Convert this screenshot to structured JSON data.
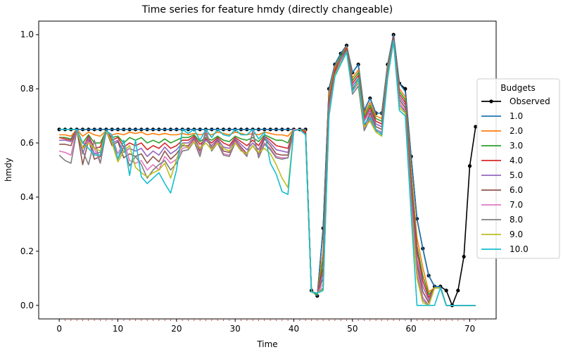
{
  "chart_data": {
    "type": "line",
    "title": "Time series for feature hmdy (directly changeable)",
    "xlabel": "Time",
    "ylabel": "hmdy",
    "xlim": [
      -3.5,
      74.5
    ],
    "ylim": [
      -0.05,
      1.05
    ],
    "xticks": [
      0,
      10,
      20,
      30,
      40,
      50,
      60,
      70
    ],
    "yticks": [
      0.0,
      0.2,
      0.4,
      0.6,
      0.8,
      1.0
    ],
    "grid": false,
    "legend": {
      "title": "Budgets",
      "placement": "right"
    },
    "colors": {
      "Observed": "#000000",
      "1.0": "#1f77b4",
      "2.0": "#ff7f0e",
      "3.0": "#2ca02c",
      "4.0": "#d62728",
      "5.0": "#9467bd",
      "6.0": "#8c564b",
      "7.0": "#e377c2",
      "8.0": "#7f7f7f",
      "9.0": "#bcbd22",
      "10.0": "#17becf"
    },
    "series": [
      {
        "name": "Observed",
        "values": [
          0.65,
          0.65,
          0.65,
          0.65,
          0.65,
          0.65,
          0.65,
          0.65,
          0.65,
          0.65,
          0.65,
          0.65,
          0.65,
          0.65,
          0.65,
          0.65,
          0.65,
          0.65,
          0.65,
          0.65,
          0.65,
          0.65,
          0.65,
          0.65,
          0.65,
          0.65,
          0.65,
          0.65,
          0.65,
          0.65,
          0.65,
          0.65,
          0.65,
          0.65,
          0.65,
          0.65,
          0.65,
          0.65,
          0.65,
          0.65,
          0.65,
          0.65,
          0.65,
          0.055,
          0.035,
          0.285,
          0.8,
          0.89,
          0.93,
          0.96,
          0.86,
          0.89,
          0.72,
          0.765,
          0.71,
          0.71,
          0.89,
          1.0,
          0.82,
          0.8,
          0.55,
          0.32,
          0.21,
          0.11,
          0.07,
          0.07,
          0.055,
          0.0,
          0.055,
          0.18,
          0.515,
          0.66
        ]
      },
      {
        "name": "1.0",
        "values": [
          0.65,
          0.65,
          0.65,
          0.65,
          0.65,
          0.65,
          0.65,
          0.65,
          0.65,
          0.65,
          0.65,
          0.65,
          0.65,
          0.65,
          0.65,
          0.65,
          0.65,
          0.65,
          0.65,
          0.65,
          0.65,
          0.65,
          0.65,
          0.65,
          0.65,
          0.65,
          0.65,
          0.65,
          0.65,
          0.65,
          0.65,
          0.65,
          0.65,
          0.65,
          0.65,
          0.65,
          0.65,
          0.65,
          0.65,
          0.65,
          0.65,
          0.65,
          0.65,
          0.055,
          0.035,
          0.28,
          0.8,
          0.89,
          0.93,
          0.96,
          0.86,
          0.89,
          0.72,
          0.765,
          0.71,
          0.71,
          0.89,
          1.0,
          0.82,
          0.79,
          0.55,
          0.32,
          0.21,
          0.11,
          0.07,
          0.07,
          0.0,
          0.0,
          0.0,
          0.0,
          0.0,
          0.0
        ]
      },
      {
        "name": "2.0",
        "values": [
          0.63,
          0.63,
          0.625,
          0.65,
          0.625,
          0.64,
          0.63,
          0.625,
          0.645,
          0.63,
          0.635,
          0.63,
          0.64,
          0.635,
          0.64,
          0.63,
          0.635,
          0.63,
          0.635,
          0.63,
          0.63,
          0.635,
          0.63,
          0.635,
          0.63,
          0.635,
          0.63,
          0.64,
          0.635,
          0.63,
          0.64,
          0.635,
          0.63,
          0.635,
          0.63,
          0.64,
          0.635,
          0.63,
          0.63,
          0.625,
          0.65,
          0.65,
          0.645,
          0.05,
          0.04,
          0.2,
          0.78,
          0.88,
          0.92,
          0.955,
          0.84,
          0.87,
          0.71,
          0.75,
          0.7,
          0.69,
          0.88,
          0.99,
          0.8,
          0.77,
          0.5,
          0.25,
          0.14,
          0.05,
          0.065,
          0.065,
          0.0,
          0.0,
          0.0,
          0.0,
          0.0,
          0.0
        ]
      },
      {
        "name": "3.0",
        "values": [
          0.62,
          0.62,
          0.615,
          0.65,
          0.6,
          0.63,
          0.6,
          0.6,
          0.645,
          0.62,
          0.625,
          0.6,
          0.62,
          0.61,
          0.62,
          0.6,
          0.61,
          0.6,
          0.615,
          0.6,
          0.61,
          0.62,
          0.62,
          0.63,
          0.605,
          0.62,
          0.61,
          0.625,
          0.61,
          0.605,
          0.625,
          0.615,
          0.61,
          0.62,
          0.605,
          0.63,
          0.62,
          0.61,
          0.61,
          0.6,
          0.65,
          0.65,
          0.64,
          0.05,
          0.04,
          0.17,
          0.76,
          0.87,
          0.92,
          0.95,
          0.83,
          0.86,
          0.7,
          0.74,
          0.69,
          0.68,
          0.87,
          0.99,
          0.79,
          0.76,
          0.47,
          0.22,
          0.11,
          0.04,
          0.065,
          0.065,
          0.0,
          0.0,
          0.0,
          0.0,
          0.0,
          0.0
        ]
      },
      {
        "name": "4.0",
        "values": [
          0.62,
          0.615,
          0.61,
          0.65,
          0.58,
          0.625,
          0.58,
          0.585,
          0.645,
          0.61,
          0.62,
          0.585,
          0.6,
          0.59,
          0.6,
          0.575,
          0.59,
          0.58,
          0.6,
          0.58,
          0.59,
          0.61,
          0.61,
          0.625,
          0.595,
          0.615,
          0.6,
          0.62,
          0.6,
          0.59,
          0.62,
          0.605,
          0.59,
          0.61,
          0.59,
          0.625,
          0.61,
          0.59,
          0.585,
          0.58,
          0.65,
          0.65,
          0.64,
          0.05,
          0.045,
          0.14,
          0.75,
          0.87,
          0.91,
          0.95,
          0.82,
          0.85,
          0.69,
          0.73,
          0.68,
          0.67,
          0.86,
          0.99,
          0.78,
          0.75,
          0.45,
          0.2,
          0.09,
          0.03,
          0.065,
          0.065,
          0.0,
          0.0,
          0.0,
          0.0,
          0.0,
          0.0
        ]
      },
      {
        "name": "5.0",
        "values": [
          0.61,
          0.61,
          0.605,
          0.65,
          0.56,
          0.62,
          0.56,
          0.565,
          0.645,
          0.6,
          0.61,
          0.565,
          0.58,
          0.57,
          0.58,
          0.55,
          0.57,
          0.555,
          0.585,
          0.56,
          0.575,
          0.6,
          0.6,
          0.62,
          0.58,
          0.61,
          0.59,
          0.615,
          0.585,
          0.58,
          0.615,
          0.595,
          0.575,
          0.6,
          0.575,
          0.62,
          0.6,
          0.575,
          0.57,
          0.565,
          0.65,
          0.65,
          0.635,
          0.05,
          0.045,
          0.12,
          0.74,
          0.86,
          0.91,
          0.945,
          0.81,
          0.84,
          0.68,
          0.72,
          0.67,
          0.66,
          0.86,
          0.985,
          0.77,
          0.74,
          0.43,
          0.17,
          0.07,
          0.02,
          0.065,
          0.065,
          0.0,
          0.0,
          0.0,
          0.0,
          0.0,
          0.0
        ]
      },
      {
        "name": "6.0",
        "values": [
          0.595,
          0.595,
          0.59,
          0.65,
          0.52,
          0.61,
          0.54,
          0.55,
          0.645,
          0.59,
          0.605,
          0.545,
          0.56,
          0.55,
          0.56,
          0.525,
          0.55,
          0.53,
          0.57,
          0.54,
          0.56,
          0.59,
          0.59,
          0.615,
          0.57,
          0.645,
          0.58,
          0.61,
          0.57,
          0.565,
          0.61,
          0.585,
          0.56,
          0.59,
          0.56,
          0.615,
          0.59,
          0.56,
          0.555,
          0.555,
          0.65,
          0.65,
          0.635,
          0.05,
          0.045,
          0.1,
          0.73,
          0.86,
          0.9,
          0.945,
          0.8,
          0.83,
          0.66,
          0.71,
          0.66,
          0.65,
          0.85,
          0.985,
          0.76,
          0.73,
          0.4,
          0.15,
          0.05,
          0.01,
          0.065,
          0.065,
          0.0,
          0.0,
          0.0,
          0.0,
          0.0,
          0.0
        ]
      },
      {
        "name": "7.0",
        "values": [
          0.57,
          0.565,
          0.555,
          0.65,
          0.6,
          0.605,
          0.58,
          0.525,
          0.645,
          0.625,
          0.56,
          0.605,
          0.535,
          0.525,
          0.535,
          0.5,
          0.52,
          0.5,
          0.55,
          0.525,
          0.54,
          0.58,
          0.585,
          0.61,
          0.56,
          0.64,
          0.575,
          0.605,
          0.56,
          0.555,
          0.605,
          0.58,
          0.555,
          0.645,
          0.55,
          0.6,
          0.58,
          0.55,
          0.545,
          0.545,
          0.65,
          0.65,
          0.63,
          0.05,
          0.045,
          0.08,
          0.72,
          0.85,
          0.9,
          0.94,
          0.79,
          0.82,
          0.65,
          0.7,
          0.65,
          0.64,
          0.85,
          0.98,
          0.75,
          0.72,
          0.38,
          0.13,
          0.03,
          0.0,
          0.065,
          0.065,
          0.0,
          0.0,
          0.0,
          0.0,
          0.0,
          0.0
        ]
      },
      {
        "name": "8.0",
        "values": [
          0.555,
          0.535,
          0.525,
          0.645,
          0.57,
          0.52,
          0.61,
          0.525,
          0.64,
          0.605,
          0.54,
          0.585,
          0.515,
          0.55,
          0.52,
          0.47,
          0.5,
          0.52,
          0.535,
          0.5,
          0.525,
          0.57,
          0.575,
          0.605,
          0.55,
          0.635,
          0.57,
          0.6,
          0.555,
          0.55,
          0.6,
          0.575,
          0.55,
          0.64,
          0.545,
          0.595,
          0.575,
          0.545,
          0.54,
          0.545,
          0.645,
          0.65,
          0.63,
          0.05,
          0.045,
          0.065,
          0.71,
          0.85,
          0.895,
          0.94,
          0.78,
          0.81,
          0.645,
          0.69,
          0.645,
          0.635,
          0.845,
          0.98,
          0.74,
          0.715,
          0.36,
          0.11,
          0.02,
          0.0,
          0.065,
          0.065,
          0.0,
          0.0,
          0.0,
          0.0,
          0.0,
          0.0
        ]
      },
      {
        "name": "9.0",
        "values": [
          0.65,
          0.65,
          0.65,
          0.65,
          0.58,
          0.6,
          0.58,
          0.57,
          0.645,
          0.6,
          0.53,
          0.57,
          0.59,
          0.51,
          0.49,
          0.475,
          0.49,
          0.5,
          0.525,
          0.47,
          0.54,
          0.6,
          0.58,
          0.605,
          0.58,
          0.6,
          0.575,
          0.6,
          0.58,
          0.57,
          0.6,
          0.57,
          0.56,
          0.59,
          0.565,
          0.58,
          0.56,
          0.52,
          0.47,
          0.435,
          0.645,
          0.65,
          0.63,
          0.05,
          0.045,
          0.06,
          0.7,
          0.85,
          0.895,
          0.935,
          0.79,
          0.83,
          0.66,
          0.68,
          0.64,
          0.625,
          0.84,
          0.975,
          0.73,
          0.71,
          0.35,
          0.1,
          0.01,
          0.0,
          0.065,
          0.065,
          0.0,
          0.0,
          0.0,
          0.0,
          0.0,
          0.0
        ]
      },
      {
        "name": "10.0",
        "values": [
          0.65,
          0.65,
          0.65,
          0.65,
          0.6,
          0.58,
          0.555,
          0.555,
          0.645,
          0.63,
          0.54,
          0.61,
          0.48,
          0.61,
          0.475,
          0.45,
          0.47,
          0.49,
          0.45,
          0.415,
          0.5,
          0.65,
          0.635,
          0.65,
          0.61,
          0.65,
          0.62,
          0.65,
          0.63,
          0.625,
          0.65,
          0.63,
          0.63,
          0.65,
          0.615,
          0.64,
          0.525,
          0.485,
          0.42,
          0.41,
          0.645,
          0.65,
          0.63,
          0.05,
          0.045,
          0.055,
          0.7,
          0.845,
          0.89,
          0.935,
          0.79,
          0.84,
          0.67,
          0.695,
          0.65,
          0.63,
          0.84,
          0.975,
          0.72,
          0.7,
          0.34,
          0.0,
          0.0,
          0.0,
          0.0,
          0.065,
          0.0,
          0.0,
          0.0,
          0.0,
          0.0,
          0.0
        ]
      }
    ]
  }
}
